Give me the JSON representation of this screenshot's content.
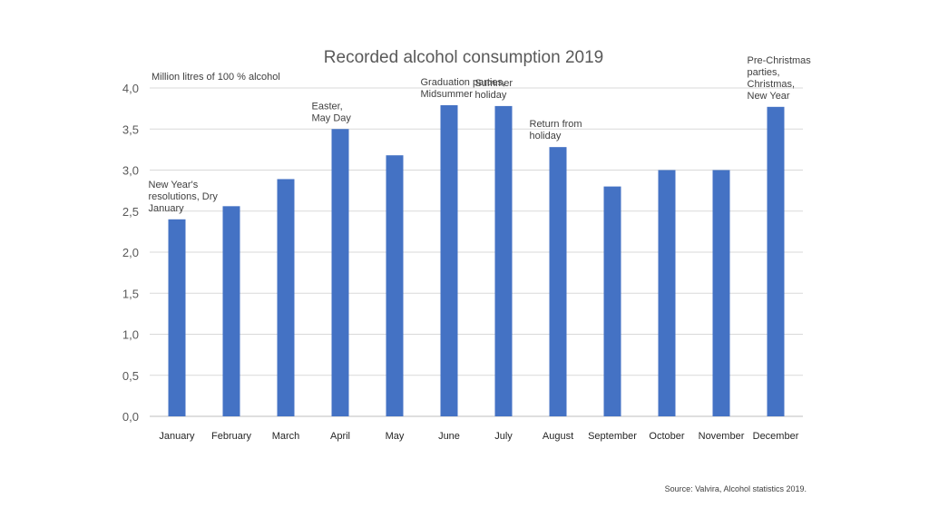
{
  "chart_data": {
    "type": "bar",
    "title": "Recorded alcohol consumption 2019",
    "ylabel": "Million litres of 100 % alcohol",
    "xlabel": "",
    "ylim": [
      0,
      4.0
    ],
    "yticks": [
      "0,0",
      "0,5",
      "1,0",
      "1,5",
      "2,0",
      "2,5",
      "3,0",
      "3,5",
      "4,0"
    ],
    "ytick_values": [
      0,
      0.5,
      1.0,
      1.5,
      2.0,
      2.5,
      3.0,
      3.5,
      4.0
    ],
    "grid": "horizontal",
    "bar_color": "#4472C4",
    "categories": [
      "January",
      "February",
      "March",
      "April",
      "May",
      "June",
      "July",
      "August",
      "September",
      "October",
      "November",
      "December"
    ],
    "values": [
      2.4,
      2.56,
      2.89,
      3.5,
      3.18,
      3.79,
      3.78,
      3.28,
      2.8,
      3.0,
      3.0,
      3.77
    ],
    "annotations": [
      {
        "category": "January",
        "lines": [
          "New Year's",
          "resolutions, Dry",
          "January"
        ]
      },
      {
        "category": "April",
        "lines": [
          "Easter,",
          "May Day"
        ]
      },
      {
        "category": "June",
        "lines": [
          "Graduation parties,",
          "Midsummer"
        ]
      },
      {
        "category": "July",
        "lines": [
          "Summer",
          "holiday"
        ]
      },
      {
        "category": "August",
        "lines": [
          "Return from",
          "holiday"
        ]
      },
      {
        "category": "December",
        "lines": [
          "Pre-Christmas",
          "parties,",
          "Christmas,",
          "New Year"
        ]
      }
    ],
    "source": "Source: Valvira, Alcohol statistics 2019."
  }
}
